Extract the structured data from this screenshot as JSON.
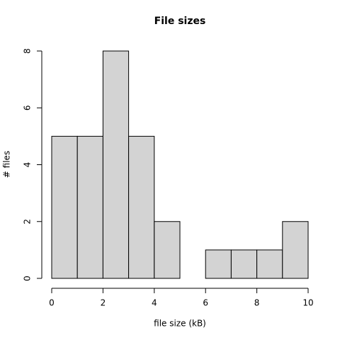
{
  "chart_data": {
    "type": "histogram",
    "title": "File sizes",
    "x_label": "file size (kB)",
    "y_label": "# files",
    "bins": [
      0,
      1,
      2,
      3,
      4,
      5,
      6,
      7,
      8,
      9,
      10
    ],
    "values": [
      5,
      5,
      8,
      5,
      2,
      0,
      1,
      1,
      1,
      2
    ],
    "color": "#d3d3d3",
    "edge_color": "#000000",
    "xlim": [
      0,
      10
    ],
    "xticks": [
      0,
      2,
      4,
      6,
      8,
      10
    ],
    "ylim": [
      0,
      8
    ],
    "yticks": [
      0,
      2,
      4,
      6,
      8
    ],
    "grid": false
  }
}
